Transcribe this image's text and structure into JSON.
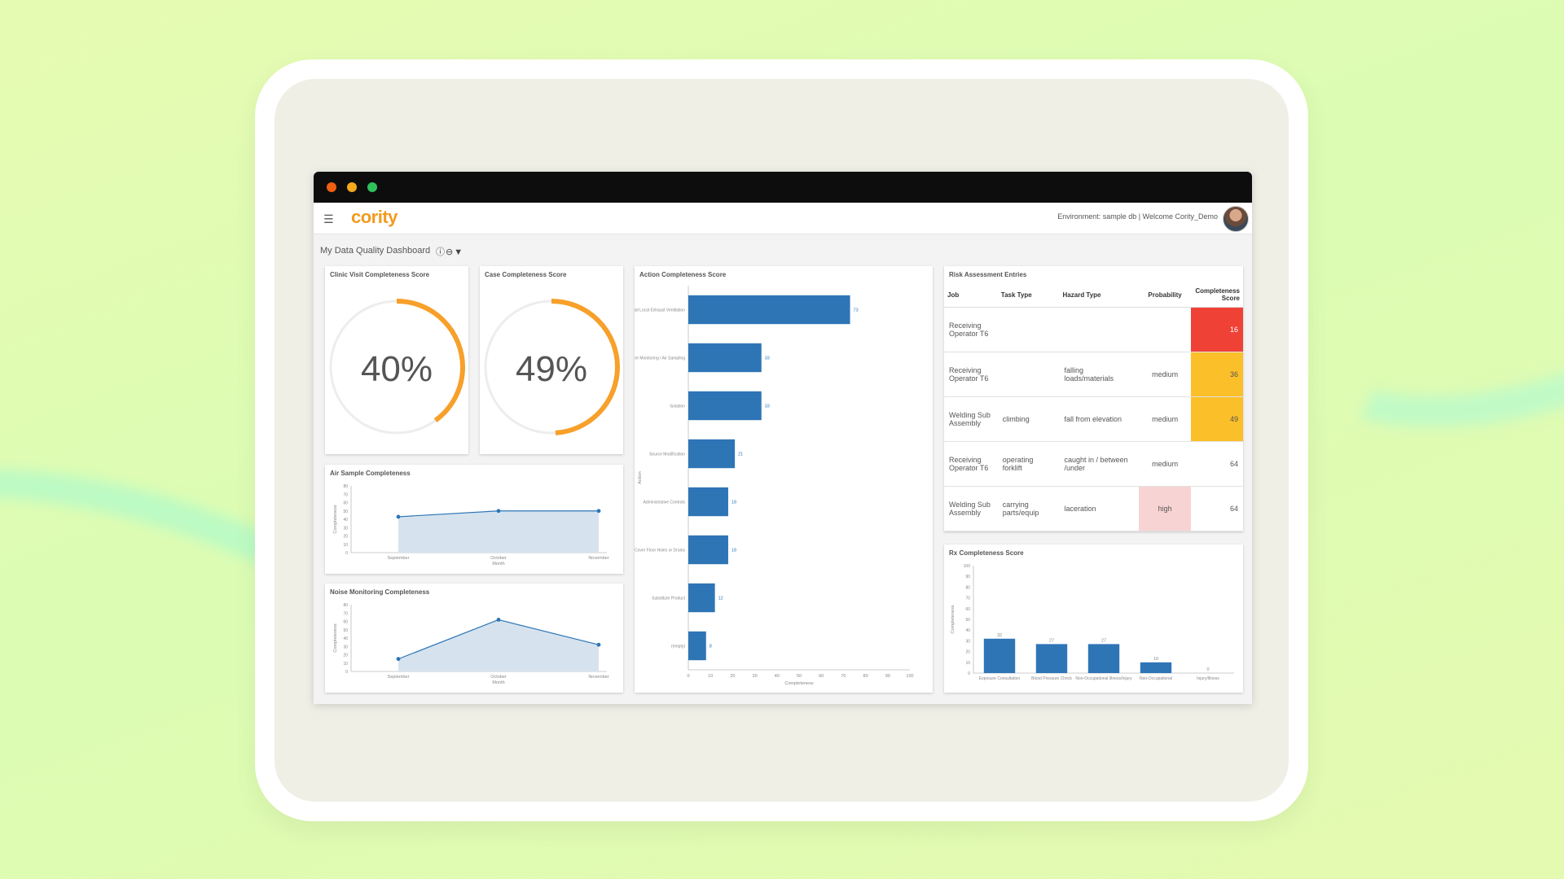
{
  "app": {
    "logo": "cority",
    "environment_text": "Environment: sample db | Welcome Cority_Demo",
    "dashboard_title": "My Data Quality Dashboard"
  },
  "colors": {
    "accent": "#f39a1d",
    "bar": "#2e75b6",
    "red": "#ef4136",
    "amber": "#fbbf29",
    "pink": "#f8d3d3"
  },
  "icons": [
    "menu-icon",
    "info-icon",
    "minus-icon",
    "filter-icon",
    "avatar"
  ],
  "cards": {
    "clinic": {
      "title": "Clinic Visit Completeness Score",
      "value": "40%",
      "fraction": 0.4
    },
    "case": {
      "title": "Case Completeness Score",
      "value": "49%",
      "fraction": 0.49
    },
    "air": {
      "title": "Air Sample Completeness"
    },
    "noise": {
      "title": "Noise Monitoring Completeness"
    },
    "action": {
      "title": "Action Completeness Score"
    },
    "risk": {
      "title": "Risk Assessment Entries"
    },
    "rx": {
      "title": "Rx Completeness Score"
    }
  },
  "risk_table": {
    "headers": [
      "Job",
      "Task Type",
      "Hazard Type",
      "Probability",
      "Completeness Score"
    ],
    "rows": [
      {
        "job": "Receiving Operator T6",
        "task": "",
        "hazard": "",
        "probability": "",
        "score": "16",
        "score_style": "red",
        "prob_style": ""
      },
      {
        "job": "Receiving Operator T6",
        "task": "",
        "hazard": "falling loads/materials",
        "probability": "medium",
        "score": "36",
        "score_style": "amber",
        "prob_style": ""
      },
      {
        "job": "Welding Sub Assembly",
        "task": "climbing",
        "hazard": "fall from elevation",
        "probability": "medium",
        "score": "49",
        "score_style": "amber",
        "prob_style": ""
      },
      {
        "job": "Receiving Operator T6",
        "task": "operating forklift",
        "hazard": "caught in / between /under",
        "probability": "medium",
        "score": "64",
        "score_style": "",
        "prob_style": ""
      },
      {
        "job": "Welding Sub Assembly",
        "task": "carrying parts/equip",
        "hazard": "laceration",
        "probability": "high",
        "score": "64",
        "score_style": "",
        "prob_style": "pink"
      }
    ]
  },
  "chart_data": [
    {
      "id": "air",
      "type": "area",
      "title": "Air Sample Completeness",
      "x": [
        "September",
        "October",
        "November"
      ],
      "values": [
        43,
        50,
        50
      ],
      "xlabel": "Month",
      "ylabel": "Completeness",
      "ylim": [
        0,
        80
      ],
      "yticks": [
        0,
        10,
        20,
        30,
        40,
        50,
        60,
        70,
        80
      ]
    },
    {
      "id": "noise",
      "type": "area",
      "title": "Noise Monitoring Completeness",
      "x": [
        "September",
        "October",
        "November"
      ],
      "values": [
        15,
        62,
        32
      ],
      "xlabel": "Month",
      "ylabel": "Completeness",
      "ylim": [
        0,
        80
      ],
      "yticks": [
        0,
        10,
        20,
        30,
        40,
        50,
        60,
        70,
        80
      ]
    },
    {
      "id": "action",
      "type": "bar",
      "orientation": "horizontal",
      "title": "Action Completeness Score",
      "categories": [
        "Install Local Exhaust Ventilation",
        "Exposure Monitoring / Air Sampling",
        "Isolation",
        "Source Modification",
        "Administrative Controls",
        "Cover Floor Holes or Drains",
        "Substitute Product",
        "(empty)"
      ],
      "values": [
        73,
        33,
        33,
        21,
        18,
        18,
        12,
        8
      ],
      "xlabel": "Completeness",
      "ylabel": "Action",
      "xlim": [
        0,
        100
      ],
      "xticks": [
        0,
        10,
        20,
        30,
        40,
        50,
        60,
        70,
        80,
        90,
        100
      ]
    },
    {
      "id": "rx",
      "type": "bar",
      "title": "Rx Completeness Score",
      "categories": [
        "Exposure Consultation",
        "Blood Pressure Check",
        "Non-Occupational Illness/Injury",
        "Non-Occupational",
        "Injury/Illness"
      ],
      "values": [
        32,
        27,
        27,
        10,
        0
      ],
      "ylabel": "Completeness",
      "ylim": [
        0,
        100
      ],
      "yticks": [
        0,
        10,
        20,
        30,
        40,
        50,
        60,
        70,
        80,
        90,
        100
      ]
    }
  ]
}
